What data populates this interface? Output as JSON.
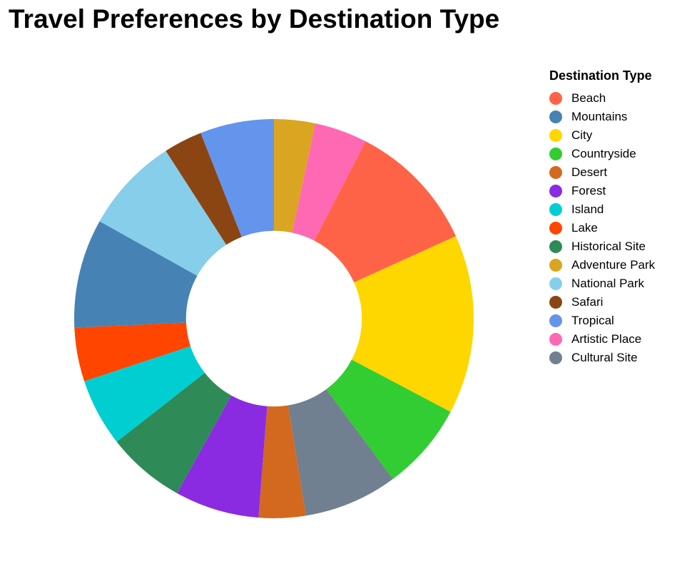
{
  "chart_data": {
    "type": "pie",
    "title": "Travel Preferences by Destination Type",
    "legend_title": "Destination Type",
    "legend_position": "right",
    "inner_radius_ratio": 0.44,
    "categories": [
      "Beach",
      "Mountains",
      "City",
      "Countryside",
      "Desert",
      "Forest",
      "Island",
      "Lake",
      "Historical Site",
      "Adventure Park",
      "National Park",
      "Safari",
      "Tropical",
      "Artistic Place",
      "Cultural Site"
    ],
    "colors": [
      "#FF6347",
      "#4682B4",
      "#FFD700",
      "#32CD32",
      "#D2691E",
      "#8A2BE2",
      "#00CED1",
      "#FF4500",
      "#2E8B57",
      "#DAA520",
      "#87CEEB",
      "#8B4513",
      "#6495ED",
      "#FF69B4",
      "#708090"
    ],
    "slice_order": [
      "Adventure Park",
      "Artistic Place",
      "Beach",
      "City",
      "Countryside",
      "Cultural Site",
      "Desert",
      "Forest",
      "Historical Site",
      "Island",
      "Lake",
      "Mountains",
      "National Park",
      "Safari",
      "Tropical"
    ],
    "values": {
      "Adventure Park": 3.5,
      "Artistic Place": 4.5,
      "Beach": 11.2,
      "City": 15.3,
      "Countryside": 7.5,
      "Cultural Site": 8.0,
      "Desert": 4.0,
      "Forest": 7.2,
      "Historical Site": 6.7,
      "Island": 5.8,
      "Lake": 4.6,
      "Mountains": 9.3,
      "National Park": 8.2,
      "Safari": 3.3,
      "Tropical": 6.3
    }
  }
}
